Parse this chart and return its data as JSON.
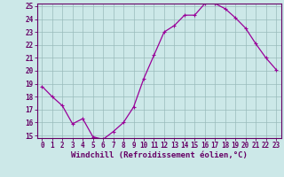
{
  "x": [
    0,
    1,
    2,
    3,
    4,
    5,
    6,
    7,
    8,
    9,
    10,
    11,
    12,
    13,
    14,
    15,
    16,
    17,
    18,
    19,
    20,
    21,
    22,
    23
  ],
  "y": [
    18.8,
    18.0,
    17.3,
    15.9,
    16.3,
    14.9,
    14.7,
    15.3,
    16.0,
    17.2,
    19.4,
    21.2,
    23.0,
    23.5,
    24.3,
    24.3,
    25.2,
    25.2,
    24.8,
    24.1,
    23.3,
    22.1,
    21.0,
    20.1
  ],
  "line_color": "#990099",
  "marker": "+",
  "marker_size": 3,
  "bg_color": "#cce8e8",
  "grid_color": "#99bbbb",
  "xlabel": "Windchill (Refroidissement éolien,°C)",
  "ylim": [
    15,
    25
  ],
  "xlim": [
    -0.5,
    23.5
  ],
  "yticks": [
    15,
    16,
    17,
    18,
    19,
    20,
    21,
    22,
    23,
    24,
    25
  ],
  "xticks": [
    0,
    1,
    2,
    3,
    4,
    5,
    6,
    7,
    8,
    9,
    10,
    11,
    12,
    13,
    14,
    15,
    16,
    17,
    18,
    19,
    20,
    21,
    22,
    23
  ],
  "tick_fontsize": 5.5,
  "xlabel_fontsize": 6.5,
  "axis_color": "#660066",
  "spine_color": "#660066"
}
